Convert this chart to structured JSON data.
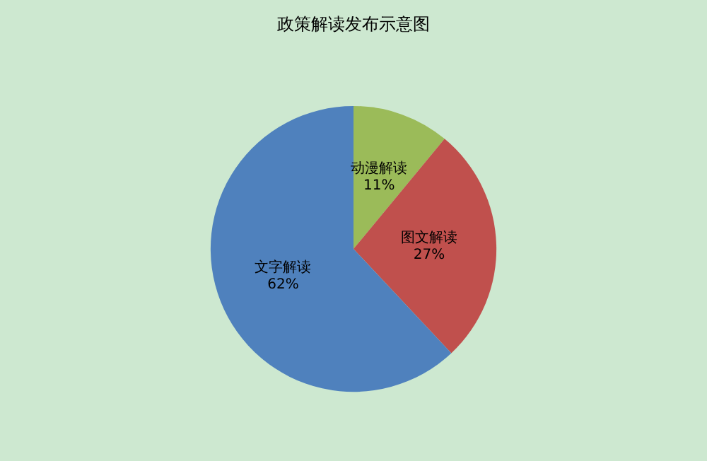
{
  "chart_data": {
    "type": "pie",
    "title": "政策解读发布示意图",
    "categories": [
      "动漫解读",
      "图文解读",
      "文字解读"
    ],
    "values": [
      11,
      27,
      62
    ],
    "colors": [
      "#9bbb59",
      "#c0504d",
      "#4f81bd"
    ],
    "value_labels": [
      "11%",
      "27%",
      "62%"
    ],
    "legend": false
  }
}
